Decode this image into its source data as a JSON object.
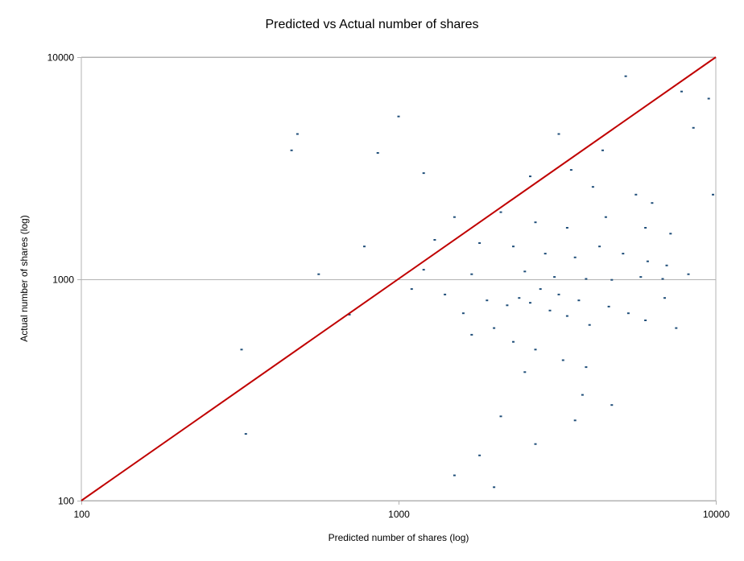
{
  "chart_data": {
    "type": "scatter",
    "title": "Predicted vs Actual number of shares",
    "xlabel": "Predicted number of shares (log)",
    "ylabel": "Actual number of shares (log)",
    "xscale": "log",
    "yscale": "log",
    "xlim": [
      100,
      10000
    ],
    "ylim": [
      100,
      10000
    ],
    "x_ticks": [
      "100",
      "1000",
      "10000"
    ],
    "y_ticks": [
      "100",
      "1000",
      "10000"
    ],
    "grid": "horizontal major gridlines",
    "legend": "none",
    "colors": {
      "points": "#1f4e79",
      "reference_line": "#c00000",
      "gridline": "#b3b3b3"
    },
    "reference_line": {
      "x": [
        100,
        10000
      ],
      "y": [
        100,
        10000
      ]
    },
    "series": [
      {
        "values": [
          [
            1000,
            5400
          ],
          [
            3200,
            4500
          ],
          [
            4400,
            3800
          ],
          [
            5200,
            8200
          ],
          [
            7800,
            7000
          ],
          [
            8500,
            4800
          ],
          [
            2600,
            2900
          ],
          [
            3500,
            3100
          ],
          [
            4100,
            2600
          ],
          [
            5600,
            2400
          ],
          [
            6300,
            2200
          ],
          [
            1500,
            1900
          ],
          [
            2100,
            2000
          ],
          [
            2700,
            1800
          ],
          [
            3400,
            1700
          ],
          [
            4500,
            1900
          ],
          [
            6000,
            1700
          ],
          [
            7200,
            1600
          ],
          [
            1300,
            1500
          ],
          [
            1800,
            1450
          ],
          [
            2300,
            1400
          ],
          [
            2900,
            1300
          ],
          [
            3600,
            1250
          ],
          [
            4300,
            1400
          ],
          [
            5100,
            1300
          ],
          [
            6100,
            1200
          ],
          [
            7000,
            1150
          ],
          [
            1200,
            1100
          ],
          [
            1700,
            1050
          ],
          [
            2500,
            1080
          ],
          [
            3100,
            1020
          ],
          [
            3900,
            1000
          ],
          [
            4700,
            990
          ],
          [
            5800,
            1020
          ],
          [
            6800,
            1000
          ],
          [
            8200,
            1050
          ],
          [
            1100,
            900
          ],
          [
            1400,
            850
          ],
          [
            1900,
            800
          ],
          [
            2200,
            760
          ],
          [
            2400,
            820
          ],
          [
            2600,
            780
          ],
          [
            2800,
            900
          ],
          [
            3000,
            720
          ],
          [
            3200,
            850
          ],
          [
            3400,
            680
          ],
          [
            3700,
            800
          ],
          [
            4000,
            620
          ],
          [
            4600,
            750
          ],
          [
            5300,
            700
          ],
          [
            6000,
            650
          ],
          [
            6900,
            820
          ],
          [
            7500,
            600
          ],
          [
            1600,
            700
          ],
          [
            2000,
            600
          ],
          [
            2300,
            520
          ],
          [
            2700,
            480
          ],
          [
            3300,
            430
          ],
          [
            3900,
            400
          ],
          [
            1700,
            560
          ],
          [
            2500,
            380
          ],
          [
            3800,
            300
          ],
          [
            4700,
            270
          ],
          [
            2100,
            240
          ],
          [
            3600,
            230
          ],
          [
            1800,
            160
          ],
          [
            2700,
            180
          ],
          [
            1500,
            130
          ],
          [
            2000,
            115
          ],
          [
            700,
            690
          ],
          [
            560,
            1050
          ],
          [
            460,
            3800
          ],
          [
            480,
            4500
          ],
          [
            320,
            480
          ],
          [
            330,
            200
          ],
          [
            860,
            3700
          ],
          [
            1200,
            3000
          ],
          [
            9500,
            6500
          ],
          [
            9800,
            2400
          ],
          [
            780,
            1400
          ]
        ]
      }
    ]
  }
}
